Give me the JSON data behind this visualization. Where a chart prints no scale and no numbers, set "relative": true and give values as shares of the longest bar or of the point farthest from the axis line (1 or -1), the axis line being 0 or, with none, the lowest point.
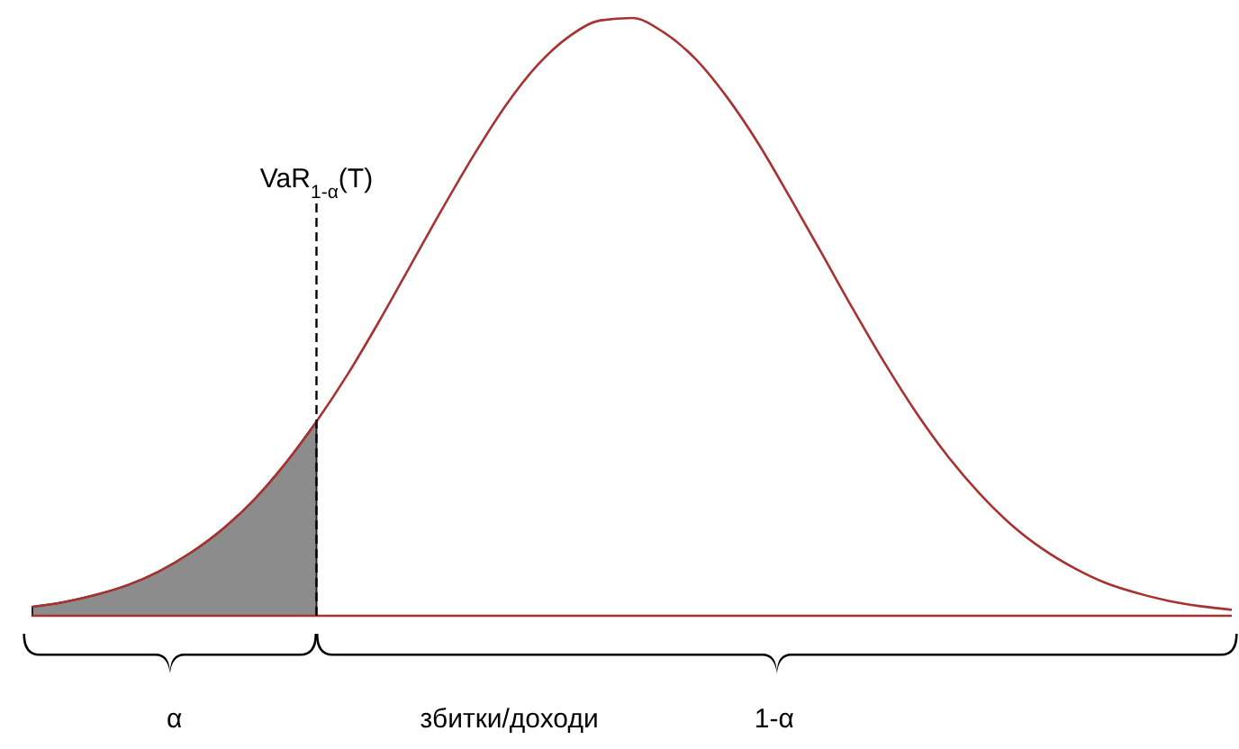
{
  "chart_data": {
    "type": "line",
    "relative": true,
    "categories": [
      null,
      null,
      null,
      null,
      null,
      null,
      null,
      null,
      null,
      null,
      null,
      null,
      null,
      null,
      null,
      null,
      null,
      null,
      null,
      null,
      null,
      null,
      null,
      null,
      null,
      null,
      null,
      null,
      null,
      null,
      null,
      null,
      null,
      null,
      null,
      null,
      null,
      null,
      null
    ],
    "series": [
      {
        "color": "#a83232",
        "values": [
          0.015,
          0.023,
          0.035,
          0.051,
          0.074,
          0.105,
          0.144,
          0.193,
          0.254,
          0.325,
          0.405,
          0.494,
          0.588,
          0.682,
          0.772,
          0.854,
          0.921,
          0.969,
          0.996,
          1,
          0.976,
          0.932,
          0.868,
          0.79,
          0.7,
          0.607,
          0.513,
          0.423,
          0.34,
          0.267,
          0.205,
          0.153,
          0.112,
          0.08,
          0.055,
          0.038,
          0.025,
          0.016,
          0.01
        ]
      },
      {
        "type": "area",
        "color": "#8c8c8c",
        "values": [
          0.015,
          0.023,
          0.035,
          0.051,
          0.074,
          0.105,
          0.144,
          0.193,
          0.254,
          0.325,
          null,
          null,
          null,
          null,
          null,
          null,
          null,
          null,
          null,
          null,
          null,
          null,
          null,
          null,
          null,
          null,
          null,
          null,
          null,
          null,
          null,
          null,
          null,
          null,
          null,
          null,
          null,
          null,
          null
        ]
      }
    ],
    "annotations": [
      "VaR$_{1-α}$(T)",
      "α",
      "збитки/доходи",
      "1-α"
    ]
  }
}
